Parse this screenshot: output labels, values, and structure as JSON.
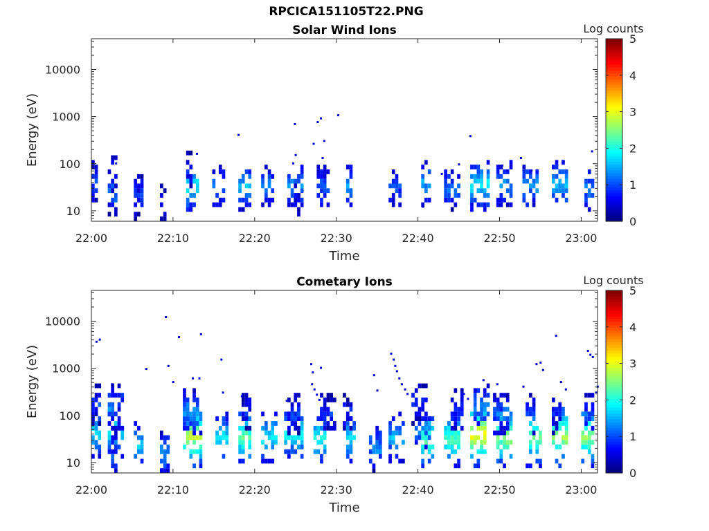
{
  "figure_title": "RPCICA151105T22.PNG",
  "colors": {
    "colormap": "jet",
    "axes": "#262626",
    "background": "#ffffff"
  },
  "chart_data": [
    {
      "type": "heatmap",
      "title": "Solar Wind Ions",
      "xlabel": "Time",
      "ylabel": "Energy (eV)",
      "xlim": [
        "22:00",
        "23:02"
      ],
      "ylim": [
        6,
        45000
      ],
      "yscale": "log",
      "xticks": [
        "22:00",
        "22:10",
        "22:20",
        "22:30",
        "22:40",
        "22:50",
        "23:00"
      ],
      "yticks": [
        "10",
        "100",
        "1000",
        "10000"
      ],
      "colorbar": {
        "label": "Log counts",
        "range": [
          0,
          5
        ],
        "ticks": [
          "0",
          "1",
          "2",
          "3",
          "4",
          "5"
        ]
      },
      "grid": false,
      "clusters": [
        {
          "t": 0.3,
          "dt": 0.6,
          "e": 35,
          "lv": 1.0
        },
        {
          "t": 2.6,
          "dt": 0.8,
          "e": 22,
          "lv": 1.2
        },
        {
          "t": 2.7,
          "dt": 0.6,
          "e": 50,
          "lv": 0.8
        },
        {
          "t": 6.0,
          "dt": 0.8,
          "e": 20,
          "lv": 1.0
        },
        {
          "t": 5.4,
          "dt": 0.4,
          "e": 14,
          "lv": 0.6
        },
        {
          "t": 8.8,
          "dt": 0.3,
          "e": 14,
          "lv": 0.5
        },
        {
          "t": 12.4,
          "dt": 1.2,
          "e": 30,
          "lv": 1.9
        },
        {
          "t": 12.0,
          "dt": 0.5,
          "e": 65,
          "lv": 0.7
        },
        {
          "t": 15.7,
          "dt": 1.0,
          "e": 28,
          "lv": 1.2
        },
        {
          "t": 18.7,
          "dt": 1.0,
          "e": 30,
          "lv": 1.5
        },
        {
          "t": 21.7,
          "dt": 1.3,
          "e": 30,
          "lv": 1.2
        },
        {
          "t": 24.8,
          "dt": 1.6,
          "e": 30,
          "lv": 1.4
        },
        {
          "t": 25.1,
          "dt": 0.5,
          "e": 14,
          "lv": 0.6
        },
        {
          "t": 28.4,
          "dt": 1.2,
          "e": 28,
          "lv": 1.1
        },
        {
          "t": 31.7,
          "dt": 0.5,
          "e": 30,
          "lv": 1.4
        },
        {
          "t": 37.3,
          "dt": 1.3,
          "e": 28,
          "lv": 1.0
        },
        {
          "t": 41.0,
          "dt": 0.6,
          "e": 35,
          "lv": 1.5
        },
        {
          "t": 44.2,
          "dt": 1.8,
          "e": 25,
          "lv": 1.2
        },
        {
          "t": 47.5,
          "dt": 1.8,
          "e": 32,
          "lv": 1.8
        },
        {
          "t": 50.7,
          "dt": 1.5,
          "e": 32,
          "lv": 1.4
        },
        {
          "t": 53.8,
          "dt": 1.4,
          "e": 30,
          "lv": 1.4
        },
        {
          "t": 57.3,
          "dt": 1.6,
          "e": 32,
          "lv": 1.6
        },
        {
          "t": 61.0,
          "dt": 0.9,
          "e": 25,
          "lv": 1.3
        }
      ],
      "dots": [
        {
          "t": 2.9,
          "e": 100
        },
        {
          "t": 17.9,
          "e": 400
        },
        {
          "t": 24.8,
          "e": 680
        },
        {
          "t": 27.6,
          "e": 750
        },
        {
          "t": 28.0,
          "e": 900
        },
        {
          "t": 30.1,
          "e": 1050
        },
        {
          "t": 27.1,
          "e": 260
        },
        {
          "t": 28.4,
          "e": 300
        },
        {
          "t": 24.9,
          "e": 150
        },
        {
          "t": 24.6,
          "e": 100
        },
        {
          "t": 28.2,
          "e": 130
        },
        {
          "t": 46.3,
          "e": 380
        },
        {
          "t": 44.9,
          "e": 95
        },
        {
          "t": 52.5,
          "e": 130
        },
        {
          "t": 61.2,
          "e": 180
        },
        {
          "t": 42.8,
          "e": 60
        },
        {
          "t": 40.5,
          "e": 12
        },
        {
          "t": 50.2,
          "e": 90
        },
        {
          "t": 50.8,
          "e": 70
        },
        {
          "t": 53.8,
          "e": 70
        },
        {
          "t": 12.8,
          "e": 160
        }
      ]
    },
    {
      "type": "heatmap",
      "title": "Cometary Ions",
      "xlabel": "Time",
      "ylabel": "Energy (eV)",
      "xlim": [
        "22:00",
        "23:02"
      ],
      "ylim": [
        6,
        45000
      ],
      "yscale": "log",
      "xticks": [
        "22:00",
        "22:10",
        "22:20",
        "22:30",
        "22:40",
        "22:50",
        "23:00"
      ],
      "yticks": [
        "10",
        "100",
        "1000",
        "10000"
      ],
      "colorbar": {
        "label": "Log counts",
        "range": [
          0,
          5
        ],
        "ticks": [
          "0",
          "1",
          "2",
          "3",
          "4",
          "5"
        ]
      },
      "grid": false,
      "clusters": [
        {
          "t": 0.4,
          "dt": 0.8,
          "e": 35,
          "lv": 1.8
        },
        {
          "t": 0.5,
          "dt": 0.6,
          "e": 150,
          "lv": 0.9
        },
        {
          "t": 3.0,
          "dt": 1.6,
          "e": 40,
          "lv": 1.8
        },
        {
          "t": 3.0,
          "dt": 1.5,
          "e": 130,
          "lv": 1.2
        },
        {
          "t": 2.8,
          "dt": 0.6,
          "e": 14,
          "lv": 1.2
        },
        {
          "t": 5.8,
          "dt": 1.0,
          "e": 20,
          "lv": 1.6
        },
        {
          "t": 8.9,
          "dt": 0.6,
          "e": 14,
          "lv": 1.3
        },
        {
          "t": 12.6,
          "dt": 2.0,
          "e": 32,
          "lv": 2.9
        },
        {
          "t": 12.4,
          "dt": 2.0,
          "e": 100,
          "lv": 1.4
        },
        {
          "t": 15.8,
          "dt": 1.2,
          "e": 28,
          "lv": 1.9
        },
        {
          "t": 18.8,
          "dt": 1.4,
          "e": 30,
          "lv": 2.4
        },
        {
          "t": 18.8,
          "dt": 0.8,
          "e": 110,
          "lv": 0.7
        },
        {
          "t": 21.8,
          "dt": 1.3,
          "e": 30,
          "lv": 1.9
        },
        {
          "t": 24.6,
          "dt": 2.0,
          "e": 35,
          "lv": 2.0
        },
        {
          "t": 24.8,
          "dt": 1.0,
          "e": 90,
          "lv": 0.9
        },
        {
          "t": 28.0,
          "dt": 1.4,
          "e": 28,
          "lv": 2.0
        },
        {
          "t": 29.0,
          "dt": 1.2,
          "e": 90,
          "lv": 0.8
        },
        {
          "t": 31.8,
          "dt": 1.0,
          "e": 28,
          "lv": 1.9
        },
        {
          "t": 31.2,
          "dt": 0.8,
          "e": 100,
          "lv": 0.7
        },
        {
          "t": 34.7,
          "dt": 1.2,
          "e": 18,
          "lv": 1.3
        },
        {
          "t": 37.5,
          "dt": 1.5,
          "e": 30,
          "lv": 1.6
        },
        {
          "t": 40.6,
          "dt": 1.4,
          "e": 40,
          "lv": 1.2
        },
        {
          "t": 40.3,
          "dt": 1.5,
          "e": 150,
          "lv": 0.8
        },
        {
          "t": 41.2,
          "dt": 1.0,
          "e": 25,
          "lv": 2.4
        },
        {
          "t": 44.2,
          "dt": 1.8,
          "e": 28,
          "lv": 2.3
        },
        {
          "t": 44.6,
          "dt": 1.2,
          "e": 110,
          "lv": 0.9
        },
        {
          "t": 47.4,
          "dt": 1.8,
          "e": 35,
          "lv": 3.2
        },
        {
          "t": 47.7,
          "dt": 1.6,
          "e": 130,
          "lv": 1.4
        },
        {
          "t": 50.4,
          "dt": 1.6,
          "e": 30,
          "lv": 2.7
        },
        {
          "t": 50.2,
          "dt": 1.4,
          "e": 100,
          "lv": 1.2
        },
        {
          "t": 54.0,
          "dt": 1.6,
          "e": 30,
          "lv": 2.5
        },
        {
          "t": 53.8,
          "dt": 1.0,
          "e": 100,
          "lv": 0.9
        },
        {
          "t": 57.3,
          "dt": 1.6,
          "e": 32,
          "lv": 2.8
        },
        {
          "t": 57.0,
          "dt": 1.0,
          "e": 100,
          "lv": 0.8
        },
        {
          "t": 60.8,
          "dt": 1.0,
          "e": 30,
          "lv": 2.6
        },
        {
          "t": 61.0,
          "dt": 0.8,
          "e": 100,
          "lv": 1.0
        }
      ],
      "dots": [
        {
          "t": 0.5,
          "e": 3600
        },
        {
          "t": 0.9,
          "e": 4000
        },
        {
          "t": 9.0,
          "e": 12000
        },
        {
          "t": 10.6,
          "e": 4500
        },
        {
          "t": 13.3,
          "e": 5200
        },
        {
          "t": 15.8,
          "e": 1500
        },
        {
          "t": 9.3,
          "e": 1100
        },
        {
          "t": 6.6,
          "e": 950
        },
        {
          "t": 26.8,
          "e": 1200
        },
        {
          "t": 27.0,
          "e": 800
        },
        {
          "t": 28.0,
          "e": 1000
        },
        {
          "t": 34.5,
          "e": 700
        },
        {
          "t": 36.6,
          "e": 2000
        },
        {
          "t": 36.9,
          "e": 1500
        },
        {
          "t": 37.1,
          "e": 1100
        },
        {
          "t": 37.3,
          "e": 850
        },
        {
          "t": 37.6,
          "e": 600
        },
        {
          "t": 37.9,
          "e": 450
        },
        {
          "t": 38.3,
          "e": 350
        },
        {
          "t": 38.6,
          "e": 280
        },
        {
          "t": 34.9,
          "e": 330
        },
        {
          "t": 26.9,
          "e": 450
        },
        {
          "t": 27.2,
          "e": 350
        },
        {
          "t": 27.5,
          "e": 270
        },
        {
          "t": 27.8,
          "e": 210
        },
        {
          "t": 54.4,
          "e": 1200
        },
        {
          "t": 54.9,
          "e": 1300
        },
        {
          "t": 55.2,
          "e": 900
        },
        {
          "t": 56.8,
          "e": 4800
        },
        {
          "t": 60.7,
          "e": 2300
        },
        {
          "t": 61.0,
          "e": 1900
        },
        {
          "t": 61.3,
          "e": 1700
        },
        {
          "t": 57.4,
          "e": 500
        },
        {
          "t": 58.0,
          "e": 350
        },
        {
          "t": 61.7,
          "e": 300
        },
        {
          "t": 61.9,
          "e": 400
        },
        {
          "t": 49.6,
          "e": 450
        },
        {
          "t": 52.8,
          "e": 400
        },
        {
          "t": 47.9,
          "e": 550
        },
        {
          "t": 9.9,
          "e": 500
        },
        {
          "t": 12.3,
          "e": 600
        },
        {
          "t": 13.1,
          "e": 600
        },
        {
          "t": 2.4,
          "e": 450
        },
        {
          "t": 16.0,
          "e": 300
        },
        {
          "t": 18.3,
          "e": 250
        },
        {
          "t": 23.8,
          "e": 200
        },
        {
          "t": 45.5,
          "e": 280
        },
        {
          "t": 46.0,
          "e": 220
        }
      ]
    }
  ]
}
